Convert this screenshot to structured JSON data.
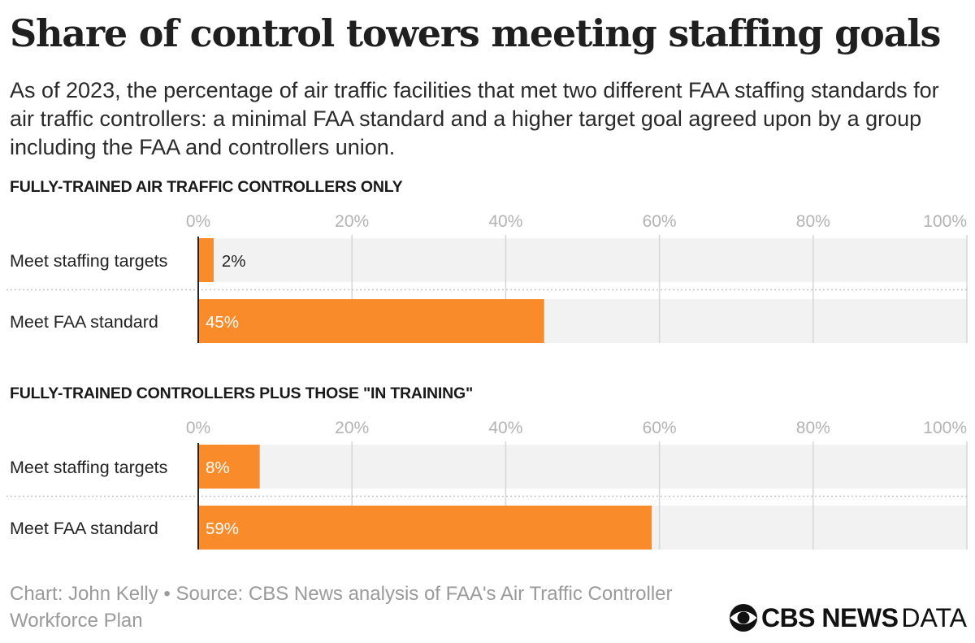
{
  "title": "Share of control towers meeting staffing goals",
  "subtitle": "As of 2023, the percentage of air traffic facilities that met two different FAA staffing standards for air traffic controllers: a minimal FAA standard and a higher target goal agreed upon by a group including the FAA and controllers union.",
  "colors": {
    "bar": "#f98b2b",
    "track": "#f2f2f2",
    "gridline": "#d6d6d6",
    "axis": "#222222",
    "tick_label": "#b3b3b3"
  },
  "chart_data": [
    {
      "type": "bar",
      "orientation": "horizontal",
      "title": "FULLY-TRAINED AIR TRAFFIC CONTROLLERS ONLY",
      "categories": [
        "Meet staffing targets",
        "Meet FAA standard"
      ],
      "values": [
        2,
        45
      ],
      "value_labels": [
        "2%",
        "45%"
      ],
      "xlim": [
        0,
        100
      ],
      "ticks": [
        0,
        20,
        40,
        60,
        80,
        100
      ],
      "tick_labels": [
        "0%",
        "20%",
        "40%",
        "60%",
        "80%",
        "100%"
      ],
      "grid": true
    },
    {
      "type": "bar",
      "orientation": "horizontal",
      "title": "FULLY-TRAINED CONTROLLERS PLUS THOSE \"IN TRAINING\"",
      "categories": [
        "Meet staffing targets",
        "Meet FAA standard"
      ],
      "values": [
        8,
        59
      ],
      "value_labels": [
        "8%",
        "59%"
      ],
      "xlim": [
        0,
        100
      ],
      "ticks": [
        0,
        20,
        40,
        60,
        80,
        100
      ],
      "tick_labels": [
        "0%",
        "20%",
        "40%",
        "60%",
        "80%",
        "100%"
      ],
      "grid": true
    }
  ],
  "footer": {
    "credit": "Chart: John Kelly • Source: CBS News analysis of FAA's Air Traffic Controller Workforce Plan",
    "logo_brand": "CBS NEWS",
    "logo_suffix": "DATA",
    "logo_icon": "cbs-eye-icon"
  }
}
